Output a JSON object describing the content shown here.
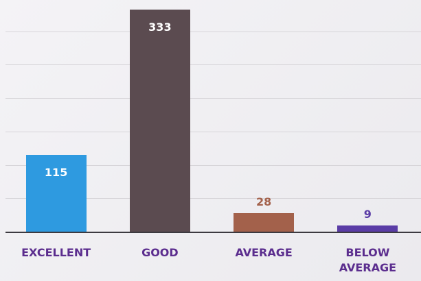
{
  "chart_data": {
    "type": "bar",
    "categories": [
      "EXCELLENT",
      "GOOD",
      "AVERAGE",
      "BELOW AVERAGE"
    ],
    "values": [
      115,
      333,
      28,
      9
    ],
    "colors": [
      "#2e9ae0",
      "#5b4b50",
      "#a3614b",
      "#5a3ca6"
    ],
    "ylim": [
      0,
      347
    ],
    "yticks": [
      0,
      50,
      100,
      150,
      200,
      250,
      300
    ],
    "grid": true
  }
}
